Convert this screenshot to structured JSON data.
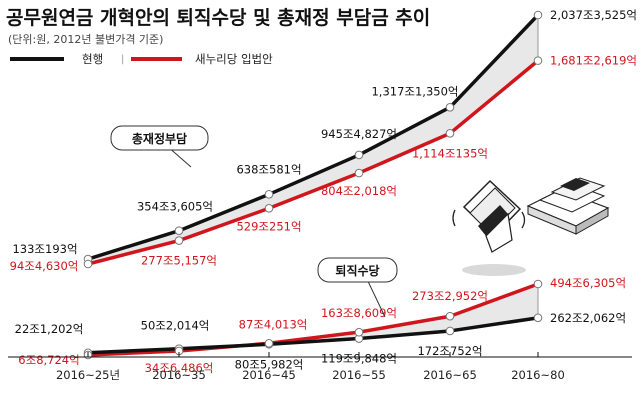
{
  "chart_data": {
    "type": "line",
    "title": "공무원연금 개혁안의 퇴직수당 및 총재정 부담금 추이",
    "subtitle": "(단위:원, 2012년 불변가격 기준)",
    "categories": [
      "2016~25년",
      "2016~35",
      "2016~45",
      "2016~55",
      "2016~65",
      "2016~80"
    ],
    "legend": [
      "현행",
      "새누리당 입법안"
    ],
    "colors": {
      "current": "#111111",
      "proposal": "#d0161d",
      "gap_fill": "#e8e8e8"
    },
    "panels": [
      {
        "callout": "총재정부담",
        "unit": "억원",
        "series": [
          {
            "name": "현행",
            "values": [
              1330193,
              3543605,
              6380581,
              9454827,
              13171350,
              20373525
            ],
            "labels": [
              "133조193억",
              "354조3,605억",
              "638조581억",
              "945조4,827억",
              "1,317조1,350억",
              "2,037조3,525억"
            ]
          },
          {
            "name": "새누리당 입법안",
            "values": [
              944630,
              2775157,
              5290251,
              8042018,
              11140135,
              16812619
            ],
            "labels": [
              "94조4,630억",
              "277조5,157억",
              "529조251억",
              "804조2,018억",
              "1,114조135억",
              "1,681조2,619억"
            ]
          }
        ]
      },
      {
        "callout": "퇴직수당",
        "unit": "억원",
        "series": [
          {
            "name": "현행",
            "values": [
              221202,
              502014,
              805982,
              1199848,
              1720752,
              2622062
            ],
            "labels": [
              "22조1,202억",
              "50조2,014억",
              "80조5,982억",
              "119조9,848억",
              "172조752억",
              "262조2,062억"
            ]
          },
          {
            "name": "새누리당 입법안",
            "values": [
              68724,
              346486,
              874013,
              1638609,
              2732952,
              4946305
            ],
            "labels": [
              "6조8,724억",
              "34조6,486억",
              "87조4,013억",
              "163조8,609억",
              "273조2,952억",
              "494조6,305억"
            ]
          }
        ]
      }
    ],
    "icons": [
      "money-bundle-icon",
      "money-stack-icon"
    ]
  }
}
